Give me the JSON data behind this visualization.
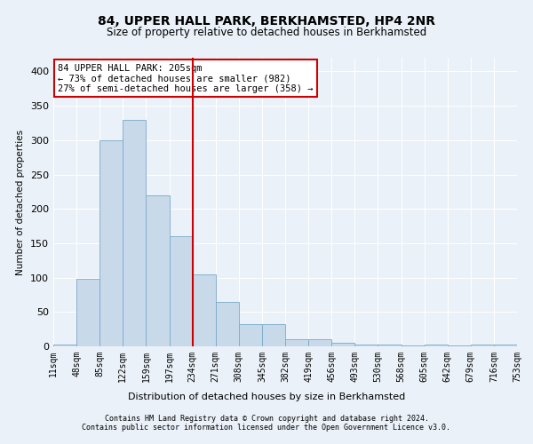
{
  "title1": "84, UPPER HALL PARK, BERKHAMSTED, HP4 2NR",
  "title2": "Size of property relative to detached houses in Berkhamsted",
  "xlabel": "Distribution of detached houses by size in Berkhamsted",
  "ylabel": "Number of detached properties",
  "bar_values": [
    2,
    98,
    300,
    330,
    220,
    160,
    105,
    65,
    32,
    32,
    10,
    10,
    5,
    2,
    2,
    1,
    2,
    1,
    2,
    2
  ],
  "bin_labels": [
    "11sqm",
    "48sqm",
    "85sqm",
    "122sqm",
    "159sqm",
    "197sqm",
    "234sqm",
    "271sqm",
    "308sqm",
    "345sqm",
    "382sqm",
    "419sqm",
    "456sqm",
    "493sqm",
    "530sqm",
    "568sqm",
    "605sqm",
    "642sqm",
    "679sqm",
    "716sqm",
    "753sqm"
  ],
  "bar_color": "#c8d9ea",
  "bar_edge_color": "#7aaac8",
  "vline_x_index": 5,
  "vline_color": "#cc0000",
  "annotation_line1": "84 UPPER HALL PARK: 205sqm",
  "annotation_line2": "← 73% of detached houses are smaller (982)",
  "annotation_line3": "27% of semi-detached houses are larger (358) →",
  "annotation_box_color": "#ffffff",
  "annotation_box_edge": "#cc0000",
  "yticks": [
    0,
    50,
    100,
    150,
    200,
    250,
    300,
    350,
    400
  ],
  "ylim": [
    0,
    420
  ],
  "footer1": "Contains HM Land Registry data © Crown copyright and database right 2024.",
  "footer2": "Contains public sector information licensed under the Open Government Licence v3.0.",
  "background_color": "#eaf1f8",
  "plot_background": "#eaf1f8",
  "grid_color": "#ffffff",
  "title1_fontsize": 10,
  "title2_fontsize": 8.5,
  "ylabel_fontsize": 7.5,
  "xlabel_fontsize": 8,
  "tick_fontsize": 7,
  "annotation_fontsize": 7.5,
  "footer_fontsize": 6
}
